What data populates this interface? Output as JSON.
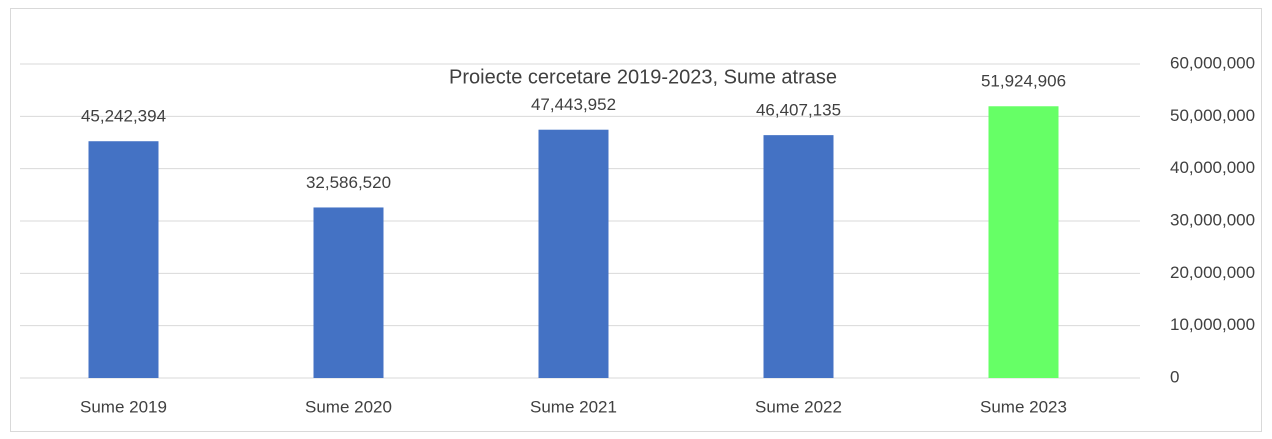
{
  "chart_data": {
    "type": "bar",
    "title": "Proiecte cercetare 2019-2023, Sume atrase",
    "categories": [
      "Sume 2019",
      "Sume 2020",
      "Sume 2021",
      "Sume 2022",
      "Sume 2023"
    ],
    "values": [
      45242394,
      32586520,
      47443952,
      46407135,
      51924906
    ],
    "value_labels": [
      "45,242,394",
      "32,586,520",
      "47,443,952",
      "46,407,135",
      "51,924,906"
    ],
    "colors": [
      "#4472c4",
      "#4472c4",
      "#4472c4",
      "#4472c4",
      "#66ff66"
    ],
    "ylim": [
      0,
      60000000
    ],
    "yticks": [
      0,
      {
        "value": 10000000,
        "label": "10,000,000"
      },
      {
        "value": 20000000,
        "label": "20,000,000"
      },
      {
        "value": 30000000,
        "label": "30,000,000"
      },
      {
        "value": 40000000,
        "label": "40,000,000"
      },
      {
        "value": 50000000,
        "label": "50,000,000"
      },
      {
        "value": 60000000,
        "label": "60,000,000"
      }
    ],
    "yaxis_side": "right",
    "grid": true
  }
}
